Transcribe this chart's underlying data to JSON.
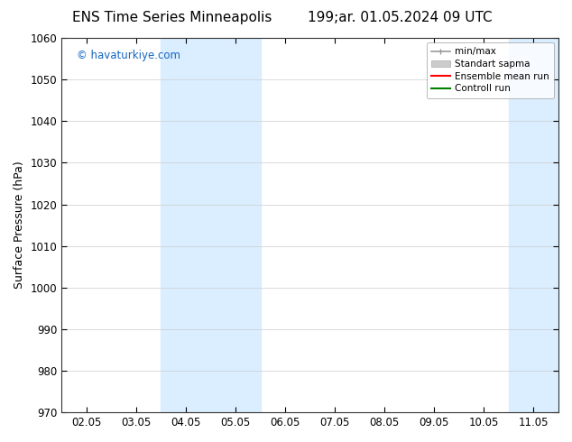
{
  "title_left": "ENS Time Series Minneapolis",
  "title_right": "199;ar. 01.05.2024 09 UTC",
  "ylabel": "Surface Pressure (hPa)",
  "ylim": [
    970,
    1060
  ],
  "yticks": [
    970,
    980,
    990,
    1000,
    1010,
    1020,
    1030,
    1040,
    1050,
    1060
  ],
  "xtick_labels": [
    "02.05",
    "03.05",
    "04.05",
    "05.05",
    "06.05",
    "07.05",
    "08.05",
    "09.05",
    "10.05",
    "11.05"
  ],
  "xtick_positions": [
    0,
    1,
    2,
    3,
    4,
    5,
    6,
    7,
    8,
    9
  ],
  "xlim_start": -0.5,
  "xlim_end": 9.5,
  "watermark": "© havaturkiye.com",
  "watermark_color": "#1565C0",
  "shaded_regions": [
    {
      "x_start": 1.5,
      "x_end": 3.5,
      "color": "#daeeff"
    },
    {
      "x_start": 8.5,
      "x_end": 9.5,
      "color": "#daeeff"
    }
  ],
  "background_color": "#ffffff",
  "legend_entries": [
    {
      "label": "min/max",
      "color": "#999999",
      "lw": 1.2,
      "style": "minmax"
    },
    {
      "label": "Standart sapma",
      "color": "#cccccc",
      "lw": 8,
      "style": "rect"
    },
    {
      "label": "Ensemble mean run",
      "color": "#ff0000",
      "lw": 1.5,
      "style": "line"
    },
    {
      "label": "Controll run",
      "color": "#008000",
      "lw": 1.5,
      "style": "line"
    }
  ],
  "grid_color": "#cccccc",
  "title_fontsize": 11,
  "tick_fontsize": 8.5,
  "ylabel_fontsize": 9,
  "legend_fontsize": 7.5
}
